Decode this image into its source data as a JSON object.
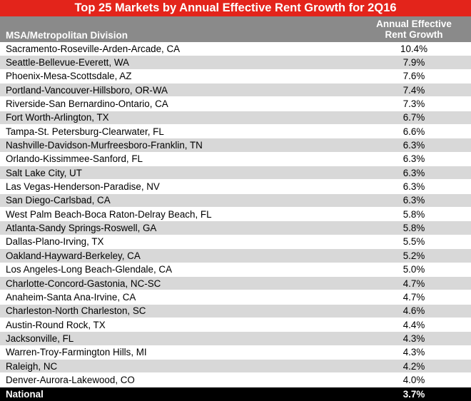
{
  "title": "Top 25 Markets by Annual Effective Rent Growth for 2Q16",
  "columns": {
    "msa": "MSA/Metropolitan Division",
    "growth_line1": "Annual Effective",
    "growth_line2": "Rent Growth"
  },
  "rows": [
    {
      "name": "Sacramento-Roseville-Arden-Arcade, CA",
      "value": "10.4%"
    },
    {
      "name": "Seattle-Bellevue-Everett, WA",
      "value": "7.9%"
    },
    {
      "name": "Phoenix-Mesa-Scottsdale, AZ",
      "value": "7.6%"
    },
    {
      "name": "Portland-Vancouver-Hillsboro, OR-WA",
      "value": "7.4%"
    },
    {
      "name": "Riverside-San Bernardino-Ontario, CA",
      "value": "7.3%"
    },
    {
      "name": "Fort Worth-Arlington, TX",
      "value": "6.7%"
    },
    {
      "name": "Tampa-St. Petersburg-Clearwater, FL",
      "value": "6.6%"
    },
    {
      "name": "Nashville-Davidson-Murfreesboro-Franklin, TN",
      "value": "6.3%"
    },
    {
      "name": "Orlando-Kissimmee-Sanford, FL",
      "value": "6.3%"
    },
    {
      "name": "Salt Lake City, UT",
      "value": "6.3%"
    },
    {
      "name": "Las Vegas-Henderson-Paradise, NV",
      "value": "6.3%"
    },
    {
      "name": "San Diego-Carlsbad, CA",
      "value": "6.3%"
    },
    {
      "name": "West Palm Beach-Boca Raton-Delray Beach, FL",
      "value": "5.8%"
    },
    {
      "name": "Atlanta-Sandy Springs-Roswell, GA",
      "value": "5.8%"
    },
    {
      "name": "Dallas-Plano-Irving, TX",
      "value": "5.5%"
    },
    {
      "name": "Oakland-Hayward-Berkeley, CA",
      "value": "5.2%"
    },
    {
      "name": "Los Angeles-Long Beach-Glendale, CA",
      "value": "5.0%"
    },
    {
      "name": "Charlotte-Concord-Gastonia, NC-SC",
      "value": "4.7%"
    },
    {
      "name": "Anaheim-Santa Ana-Irvine, CA",
      "value": "4.7%"
    },
    {
      "name": "Charleston-North Charleston, SC",
      "value": "4.6%"
    },
    {
      "name": "Austin-Round Rock, TX",
      "value": "4.4%"
    },
    {
      "name": "Jacksonville, FL",
      "value": "4.3%"
    },
    {
      "name": "Warren-Troy-Farmington Hills, MI",
      "value": "4.3%"
    },
    {
      "name": "Raleigh, NC",
      "value": "4.2%"
    },
    {
      "name": "Denver-Aurora-Lakewood, CO",
      "value": "4.0%"
    }
  ],
  "national": {
    "name": "National",
    "value": "3.7%"
  },
  "colors": {
    "title_bg": "#e3241b",
    "header_bg": "#8a8a8a",
    "alt_row": "#d8d8d8",
    "national_bg": "#000000"
  }
}
